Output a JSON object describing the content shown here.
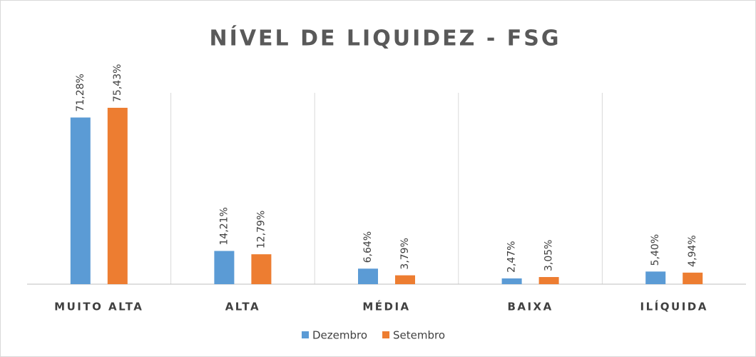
{
  "chart_data": {
    "type": "bar",
    "title": "NÍVEL DE LIQUIDEZ - FSG",
    "categories": [
      "MUITO ALTA",
      "ALTA",
      "MÉDIA",
      "BAIXA",
      "ILÍQUIDA"
    ],
    "series": [
      {
        "name": "Dezembro",
        "color": "#5b9bd5",
        "values": [
          71.28,
          14.21,
          6.64,
          2.47,
          5.4
        ],
        "value_labels": [
          "71,28%",
          "14,21%",
          "6,64%",
          "2,47%",
          "5,40%"
        ]
      },
      {
        "name": "Setembro",
        "color": "#ed7d31",
        "values": [
          75.43,
          12.79,
          3.79,
          3.05,
          4.94
        ],
        "value_labels": [
          "75,43%",
          "12,79%",
          "3,79%",
          "3,05%",
          "4,94%"
        ]
      }
    ]
  }
}
